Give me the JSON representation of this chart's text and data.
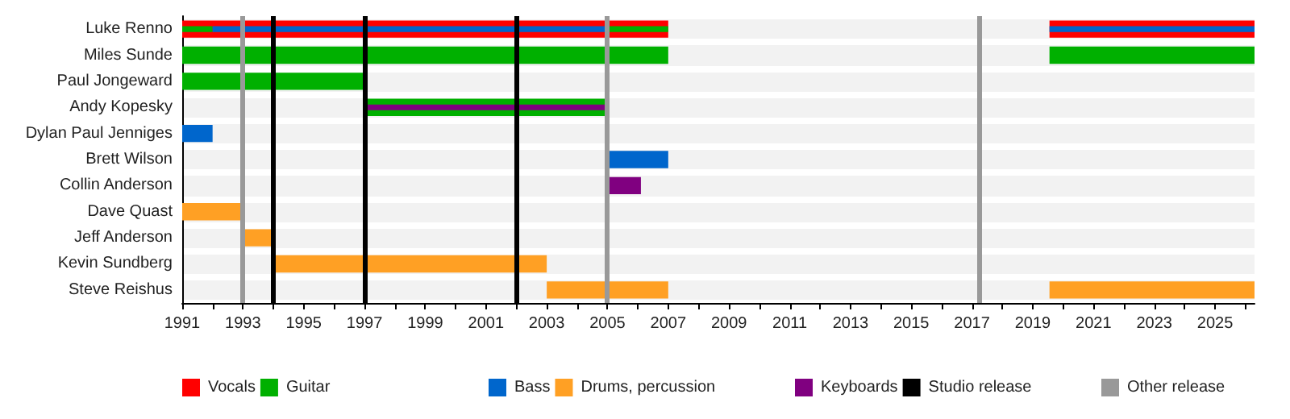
{
  "chart_data": {
    "type": "bar",
    "orientation": "horizontal",
    "categories": [
      "Luke Renno",
      "Miles Sunde",
      "Paul Jongeward",
      "Andy Kopesky",
      "Dylan Paul Jenniges",
      "Brett Wilson",
      "Collin Anderson",
      "Dave Quast",
      "Jeff Anderson",
      "Kevin Sundberg",
      "Steve Reishus"
    ],
    "series": [
      {
        "name": "Vocals",
        "color": "#ff0000",
        "base": [
          1991,
          null,
          null,
          null,
          null,
          null,
          null,
          null,
          null,
          null,
          null
        ],
        "values": [
          16,
          null,
          null,
          null,
          null,
          null,
          null,
          null,
          null,
          null,
          null
        ]
      },
      {
        "color": "#ff0000",
        "base": [
          2019.55,
          null,
          null,
          null,
          null,
          null,
          null,
          null,
          null,
          null,
          null
        ],
        "values": [
          6.75,
          null,
          null,
          null,
          null,
          null,
          null,
          null,
          null,
          null,
          null
        ]
      },
      {
        "name": "Guitar",
        "color": "#00b000",
        "base": [
          1991,
          1991,
          1991,
          1997,
          null,
          null,
          null,
          null,
          null,
          null,
          null
        ],
        "values": [
          1,
          16,
          6,
          8,
          null,
          null,
          null,
          null,
          null,
          null,
          null
        ]
      },
      {
        "color": "#00b000",
        "base": [
          2005,
          2019.55,
          null,
          null,
          null,
          null,
          null,
          null,
          null,
          null,
          null
        ],
        "values": [
          2,
          6.75,
          null,
          null,
          null,
          null,
          null,
          null,
          null,
          null,
          null
        ]
      },
      {
        "name": "Bass",
        "color": "#0066cc",
        "base": [
          1992,
          null,
          null,
          null,
          1991,
          2005,
          null,
          null,
          null,
          null,
          null
        ],
        "values": [
          13,
          null,
          null,
          null,
          1,
          2,
          null,
          null,
          null,
          null,
          null
        ]
      },
      {
        "color": "#0066cc",
        "base": [
          2019.55,
          null,
          null,
          null,
          null,
          null,
          null,
          null,
          null,
          null,
          null
        ],
        "values": [
          6.75,
          null,
          null,
          null,
          null,
          null,
          null,
          null,
          null,
          null,
          null
        ]
      },
      {
        "name": "Drums, percussion",
        "color": "#ffa024",
        "base": [
          null,
          null,
          null,
          null,
          null,
          null,
          null,
          1991,
          1993,
          1994,
          2003
        ],
        "values": [
          null,
          null,
          null,
          null,
          null,
          null,
          null,
          2,
          1,
          9,
          4
        ]
      },
      {
        "color": "#ffa024",
        "base": [
          null,
          null,
          null,
          null,
          null,
          null,
          null,
          null,
          null,
          null,
          2019.55
        ],
        "values": [
          null,
          null,
          null,
          null,
          null,
          null,
          null,
          null,
          null,
          null,
          6.75
        ]
      },
      {
        "name": "Keyboards",
        "color": "#800080",
        "base": [
          null,
          null,
          null,
          1997,
          null,
          null,
          2005,
          null,
          null,
          null,
          null
        ],
        "values": [
          null,
          null,
          null,
          8,
          null,
          null,
          1.1,
          null,
          null,
          null,
          null
        ]
      }
    ],
    "ref_lines": [
      {
        "axis": "x",
        "value": 1994,
        "label": "Studio release",
        "color": "#000000"
      },
      {
        "axis": "x",
        "value": 1997,
        "color": "#000000"
      },
      {
        "axis": "x",
        "value": 2002,
        "color": "#000000"
      },
      {
        "axis": "x",
        "value": 1993,
        "label": "Other release",
        "color": "#999999"
      },
      {
        "axis": "x",
        "value": 2005,
        "color": "#999999"
      },
      {
        "axis": "x",
        "value": 2017.25,
        "color": "#999999"
      }
    ],
    "xlim": [
      1991,
      2026.3
    ],
    "xticks": [
      1991,
      {
        "value": 1992,
        "label": null
      },
      1993,
      {
        "value": 1994,
        "label": null
      },
      1995,
      {
        "value": 1996,
        "label": null
      },
      1997,
      {
        "value": 1998,
        "label": null
      },
      1999,
      {
        "value": 2000,
        "label": null
      },
      2001,
      {
        "value": 2002,
        "label": null
      },
      2003,
      {
        "value": 2004,
        "label": null
      },
      2005,
      {
        "value": 2006,
        "label": null
      },
      2007,
      {
        "value": 2008,
        "label": null
      },
      2009,
      {
        "value": 2010,
        "label": null
      },
      2011,
      {
        "value": 2012,
        "label": null
      },
      2013,
      {
        "value": 2014,
        "label": null
      },
      2015,
      {
        "value": 2016,
        "label": null
      },
      2017,
      {
        "value": 2018,
        "label": null
      },
      2019,
      {
        "value": 2020,
        "label": null
      },
      2021,
      {
        "value": 2022,
        "label": null
      },
      2023,
      {
        "value": 2024,
        "label": null
      },
      2025,
      {
        "value": 2026,
        "label": null
      }
    ],
    "grid": "y",
    "legend": "bottom"
  }
}
